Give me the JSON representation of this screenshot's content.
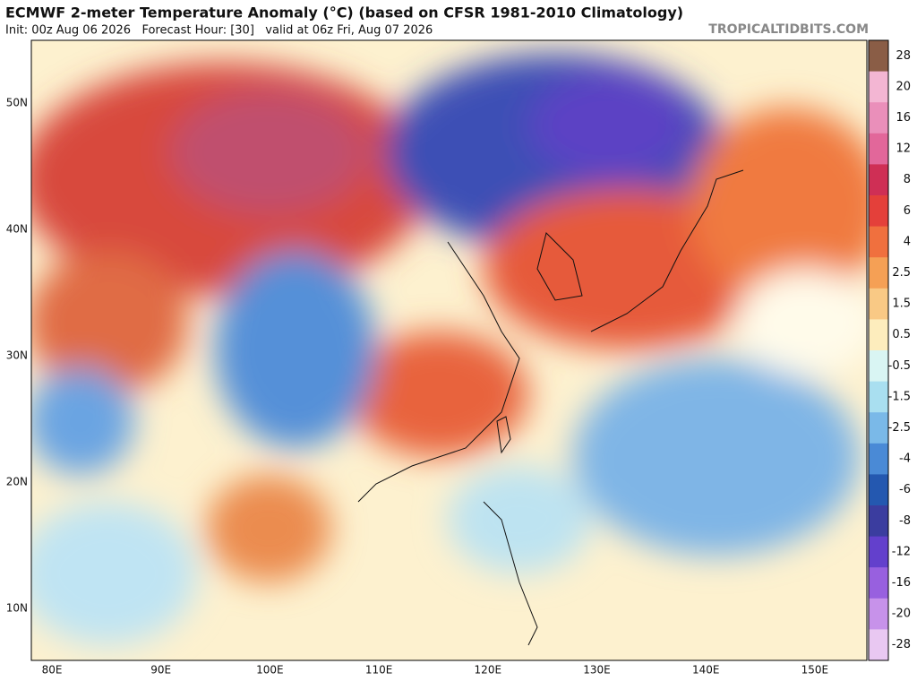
{
  "header": {
    "title": "ECMWF 2-meter Temperature Anomaly (°C) (based on CFSR 1981-2010 Climatology)",
    "subtitle": "Init: 00z Aug 06 2026   Forecast Hour: [30]   valid at 06z Fri, Aug 07 2026",
    "source": "TROPICALTIDBITS.COM"
  },
  "map": {
    "lat_labels": [
      "50N",
      "40N",
      "30N",
      "20N",
      "10N"
    ],
    "lon_labels": [
      "80E",
      "90E",
      "100E",
      "110E",
      "120E",
      "130E",
      "140E",
      "150E"
    ]
  },
  "colorbar": {
    "levels": [
      28,
      20,
      16,
      12,
      8,
      6,
      4,
      2.5,
      1.5,
      0.5,
      -0.5,
      -1.5,
      -2.5,
      -4,
      -6,
      -8,
      -12,
      -16,
      -20,
      -28
    ],
    "colors": [
      "#8a5d46",
      "#f3b6d3",
      "#ea8fba",
      "#e2679a",
      "#cf2f55",
      "#e4403a",
      "#f0703e",
      "#f5a055",
      "#f9c985",
      "#fdedbd",
      "#d9f5f3",
      "#a9dff0",
      "#7ab9e8",
      "#4a8ad6",
      "#2458b0",
      "#3b3d9f",
      "#6340cc",
      "#9860df",
      "#c792ea",
      "#e9c8f2"
    ]
  }
}
